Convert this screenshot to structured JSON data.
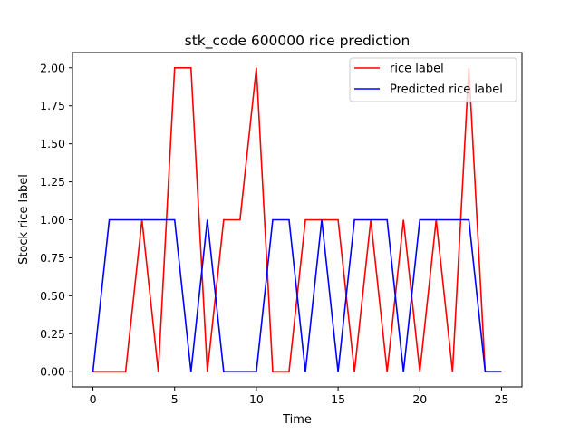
{
  "chart_data": {
    "type": "line",
    "title": "stk_code 600000 rice prediction",
    "xlabel": "Time",
    "ylabel": "Stock rice label",
    "xlim": [
      -1.25,
      26.25
    ],
    "ylim": [
      -0.1,
      2.1
    ],
    "x_ticks": [
      0,
      5,
      10,
      15,
      20,
      25
    ],
    "y_ticks": [
      0.0,
      0.25,
      0.5,
      0.75,
      1.0,
      1.25,
      1.5,
      1.75,
      2.0
    ],
    "x_tick_labels": [
      "0",
      "5",
      "10",
      "15",
      "20",
      "25"
    ],
    "y_tick_labels": [
      "0.00",
      "0.25",
      "0.50",
      "0.75",
      "1.00",
      "1.25",
      "1.50",
      "1.75",
      "2.00"
    ],
    "grid": false,
    "legend_position": "top-right",
    "x": [
      0,
      1,
      2,
      3,
      4,
      5,
      6,
      7,
      8,
      9,
      10,
      11,
      12,
      13,
      14,
      15,
      16,
      17,
      18,
      19,
      20,
      21,
      22,
      23,
      24,
      25
    ],
    "series": [
      {
        "name": "rice label",
        "color": "#ff0000",
        "values": [
          0,
          0,
          0,
          1,
          0,
          2,
          2,
          0,
          1,
          1,
          2,
          0,
          0,
          1,
          1,
          1,
          0,
          1,
          0,
          1,
          0,
          1,
          0,
          2,
          0,
          0
        ]
      },
      {
        "name": "Predicted rice label",
        "color": "#0000ff",
        "values": [
          0,
          1,
          1,
          1,
          1,
          1,
          0,
          1,
          0,
          0,
          0,
          1,
          1,
          0,
          1,
          0,
          1,
          1,
          1,
          0,
          1,
          1,
          1,
          1,
          0,
          0
        ]
      }
    ]
  }
}
